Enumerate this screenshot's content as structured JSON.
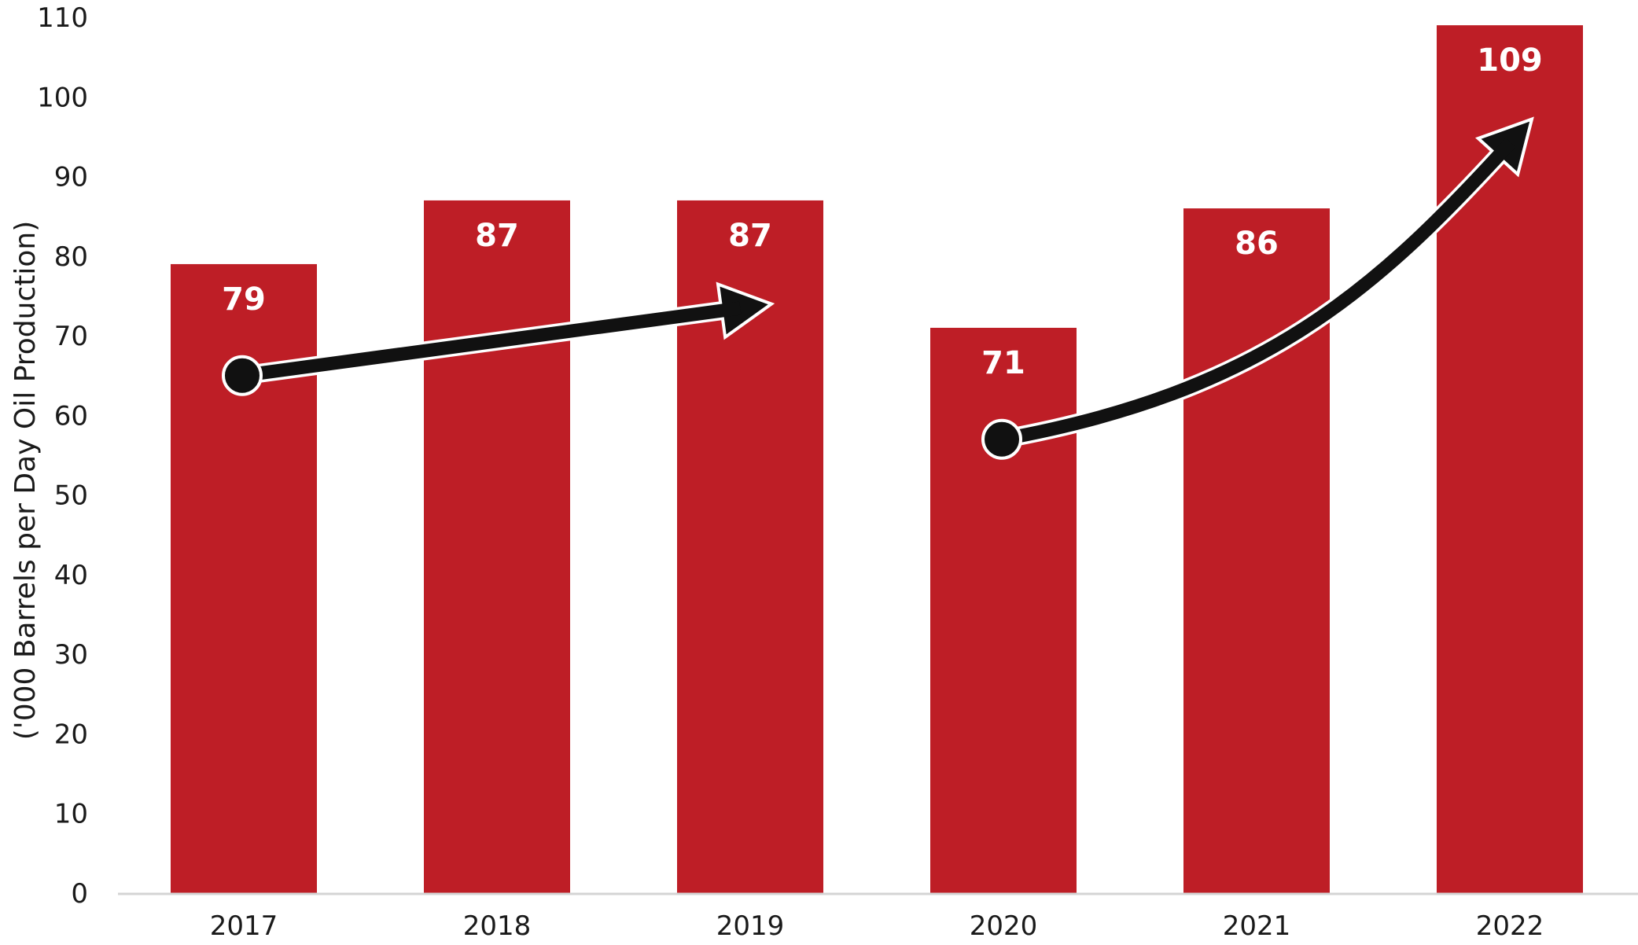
{
  "chart_data": {
    "type": "bar",
    "categories": [
      "2017",
      "2018",
      "2019",
      "2020",
      "2021",
      "2022"
    ],
    "values": [
      79,
      87,
      87,
      71,
      86,
      109
    ],
    "data_labels": [
      "79",
      "87",
      "87",
      "71",
      "86",
      "109"
    ],
    "ylabel": "('000 Barrels per Day Oil Production)",
    "xlabel": "",
    "title": "",
    "ylim": [
      0,
      110
    ],
    "yticks": [
      0,
      10,
      20,
      30,
      40,
      50,
      60,
      70,
      80,
      90,
      100,
      110
    ],
    "ytick_labels": [
      "0",
      "10",
      "20",
      "30",
      "40",
      "50",
      "60",
      "70",
      "80",
      "90",
      "100",
      "110"
    ],
    "grid": false,
    "legend": "none",
    "colors": {
      "bar": "#be1e26",
      "arrow": "#111111",
      "arrow_outline": "#ffffff",
      "axis_line": "#d4d4d4"
    },
    "annotations": [
      {
        "kind": "trend-arrow",
        "from_category": "2017",
        "from_value": 65,
        "to_category": "2019",
        "to_value": 74,
        "shape": "straight"
      },
      {
        "kind": "trend-arrow",
        "from_category": "2020",
        "from_value": 57,
        "to_category": "2022",
        "to_value": 98,
        "shape": "curved"
      }
    ]
  }
}
